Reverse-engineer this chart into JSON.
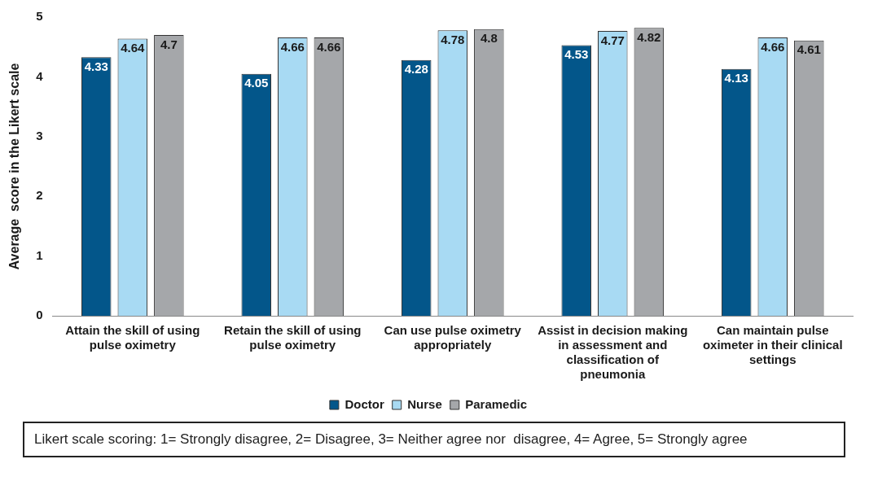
{
  "chart_data": {
    "type": "bar",
    "ylabel": "Average  score in the Likert scale",
    "categories": [
      "Attain the skill of using pulse oximetry",
      "Retain the skill of using pulse oximetry",
      "Can use pulse oximetry appropriately",
      "Assist in decision making in assessment and classification of pneumonia",
      "Can maintain pulse oximeter in their clinical settings"
    ],
    "series": [
      {
        "name": "Doctor",
        "color": "#03568a",
        "values": [
          4.33,
          4.05,
          4.28,
          4.53,
          4.13
        ]
      },
      {
        "name": "Nurse",
        "color": "#a8daf3",
        "values": [
          4.64,
          4.66,
          4.78,
          4.77,
          4.66
        ]
      },
      {
        "name": "Paramedic",
        "color": "#a5a7aa",
        "values": [
          4.7,
          4.66,
          4.8,
          4.82,
          4.61
        ]
      }
    ],
    "ylim": [
      0,
      5
    ],
    "yticks": [
      0,
      1,
      2,
      3,
      4,
      5
    ],
    "grid": false,
    "legend": "bottom",
    "data_labels": true,
    "annotations": [
      "Likert scale scoring: 1= Strongly disagree, 2= Disagree, 3= Neither agree nor  disagree, 4= Agree, 5= Strongly agree"
    ]
  }
}
